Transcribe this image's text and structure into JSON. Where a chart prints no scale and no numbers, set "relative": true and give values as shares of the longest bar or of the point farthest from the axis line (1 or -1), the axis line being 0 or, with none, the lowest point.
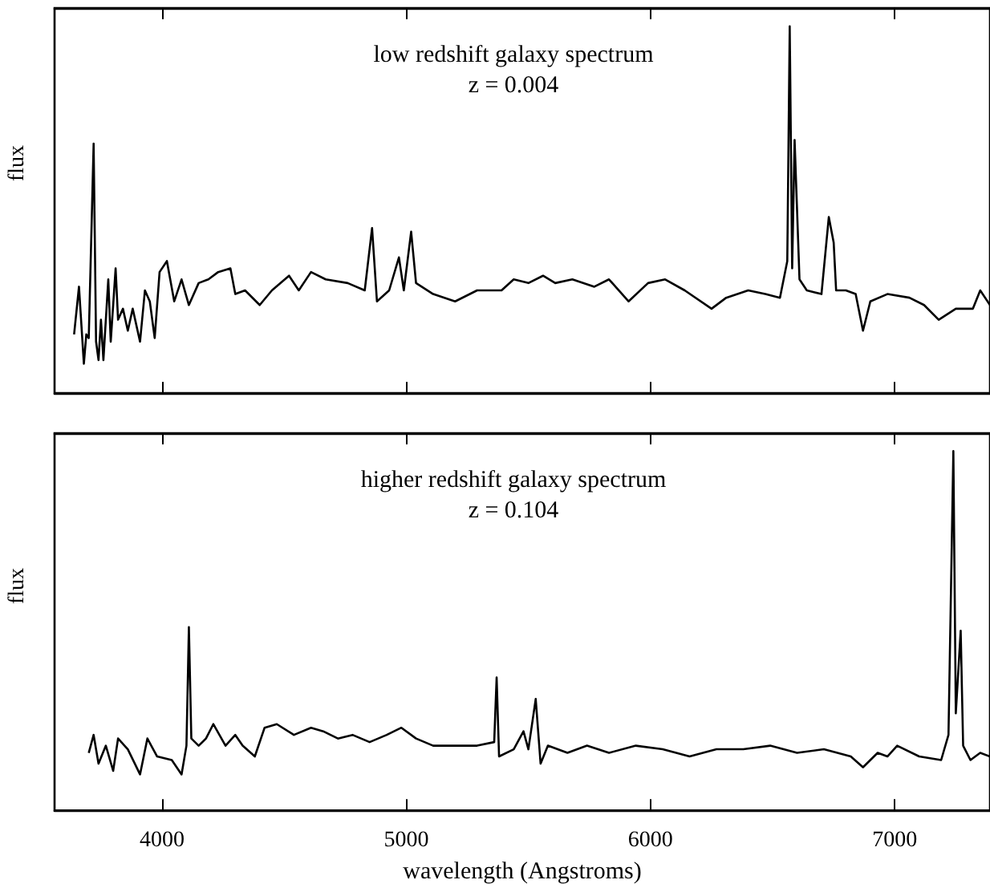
{
  "chart_data": [
    {
      "type": "line",
      "ylabel": "flux",
      "relative": true,
      "xlim": [
        3560,
        7390
      ],
      "xticks": [
        4000,
        5000,
        6000,
        7000
      ],
      "tick_labels": false,
      "marker": "none",
      "line_style": "solid",
      "annotations": [
        "low redshift galaxy spectrum",
        "z = 0.004"
      ],
      "series": [
        {
          "color": "#000000",
          "x": [
            3640,
            3660,
            3680,
            3690,
            3700,
            3720,
            3730,
            3740,
            3750,
            3760,
            3780,
            3790,
            3810,
            3820,
            3840,
            3860,
            3880,
            3910,
            3930,
            3950,
            3970,
            3990,
            4020,
            4050,
            4080,
            4110,
            4150,
            4190,
            4230,
            4280,
            4300,
            4340,
            4400,
            4450,
            4520,
            4560,
            4610,
            4670,
            4760,
            4830,
            4860,
            4880,
            4930,
            4970,
            4990,
            5020,
            5040,
            5110,
            5200,
            5290,
            5390,
            5440,
            5500,
            5560,
            5610,
            5680,
            5770,
            5830,
            5910,
            5990,
            6060,
            6140,
            6250,
            6310,
            6400,
            6470,
            6530,
            6560,
            6570,
            6580,
            6590,
            6610,
            6640,
            6700,
            6730,
            6750,
            6760,
            6800,
            6840,
            6870,
            6900,
            6970,
            7060,
            7120,
            7180,
            7250,
            7320,
            7350,
            7390
          ],
          "values": [
            0.16,
            0.29,
            0.08,
            0.16,
            0.15,
            0.68,
            0.14,
            0.09,
            0.2,
            0.09,
            0.31,
            0.14,
            0.34,
            0.2,
            0.23,
            0.17,
            0.23,
            0.14,
            0.28,
            0.25,
            0.15,
            0.33,
            0.36,
            0.25,
            0.31,
            0.24,
            0.3,
            0.31,
            0.33,
            0.34,
            0.27,
            0.28,
            0.24,
            0.28,
            0.32,
            0.28,
            0.33,
            0.31,
            0.3,
            0.28,
            0.45,
            0.25,
            0.28,
            0.37,
            0.28,
            0.44,
            0.3,
            0.27,
            0.25,
            0.28,
            0.28,
            0.31,
            0.3,
            0.32,
            0.3,
            0.31,
            0.29,
            0.31,
            0.25,
            0.3,
            0.31,
            0.28,
            0.23,
            0.26,
            0.28,
            0.27,
            0.26,
            0.36,
            1,
            0.34,
            0.69,
            0.31,
            0.28,
            0.27,
            0.48,
            0.41,
            0.28,
            0.28,
            0.27,
            0.17,
            0.25,
            0.27,
            0.26,
            0.24,
            0.2,
            0.23,
            0.23,
            0.28,
            0.24
          ]
        }
      ]
    },
    {
      "type": "line",
      "xlabel": "wavelength (Angstroms)",
      "ylabel": "flux",
      "relative": true,
      "xlim": [
        3560,
        7390
      ],
      "xticks": [
        4000,
        5000,
        6000,
        7000
      ],
      "tick_labels": "x",
      "marker": "none",
      "line_style": "solid",
      "annotations": [
        "higher redshift galaxy spectrum",
        "z = 0.104"
      ],
      "series": [
        {
          "color": "#000000",
          "x": [
            3700,
            3720,
            3740,
            3770,
            3800,
            3820,
            3860,
            3910,
            3940,
            3980,
            4040,
            4080,
            4100,
            4110,
            4120,
            4150,
            4180,
            4210,
            4260,
            4300,
            4330,
            4380,
            4420,
            4470,
            4540,
            4610,
            4660,
            4720,
            4780,
            4850,
            4920,
            4980,
            5040,
            5110,
            5200,
            5290,
            5360,
            5370,
            5380,
            5440,
            5480,
            5500,
            5530,
            5550,
            5580,
            5660,
            5740,
            5830,
            5940,
            6050,
            6160,
            6270,
            6380,
            6490,
            6600,
            6710,
            6820,
            6870,
            6930,
            6970,
            7010,
            7100,
            7190,
            7220,
            7240,
            7250,
            7270,
            7280,
            7310,
            7350,
            7390
          ],
          "values": [
            0.16,
            0.21,
            0.13,
            0.18,
            0.11,
            0.2,
            0.17,
            0.1,
            0.2,
            0.15,
            0.14,
            0.1,
            0.18,
            0.51,
            0.2,
            0.18,
            0.2,
            0.24,
            0.18,
            0.21,
            0.18,
            0.15,
            0.23,
            0.24,
            0.21,
            0.23,
            0.22,
            0.2,
            0.21,
            0.19,
            0.21,
            0.23,
            0.2,
            0.18,
            0.18,
            0.18,
            0.19,
            0.37,
            0.15,
            0.17,
            0.22,
            0.17,
            0.31,
            0.13,
            0.18,
            0.16,
            0.18,
            0.16,
            0.18,
            0.17,
            0.15,
            0.17,
            0.17,
            0.18,
            0.16,
            0.17,
            0.15,
            0.12,
            0.16,
            0.15,
            0.18,
            0.15,
            0.14,
            0.21,
            1,
            0.27,
            0.5,
            0.18,
            0.14,
            0.16,
            0.15
          ]
        }
      ]
    }
  ]
}
